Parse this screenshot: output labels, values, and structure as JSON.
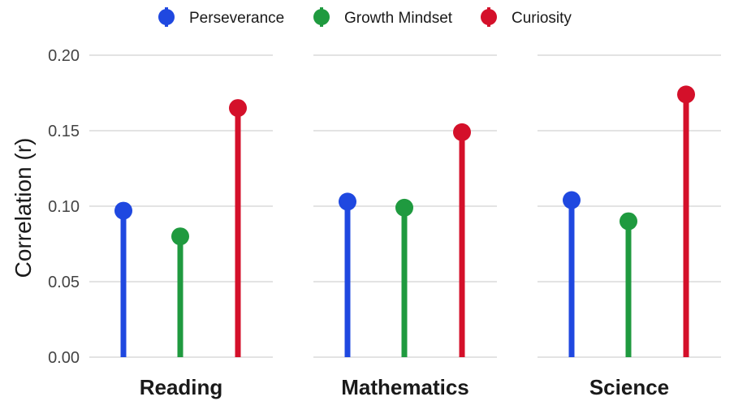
{
  "chart_data": {
    "type": "lollipop",
    "ylabel": "Correlation (r)",
    "ylim": [
      0,
      0.2
    ],
    "yticks": [
      0.0,
      0.05,
      0.1,
      0.15,
      0.2
    ],
    "ytick_labels": [
      "0.00",
      "0.05",
      "0.10",
      "0.15",
      "0.20"
    ],
    "grid": "horizontal",
    "legend_position": "top",
    "facets": [
      "Reading",
      "Mathematics",
      "Science"
    ],
    "series": [
      {
        "name": "Perseverance",
        "color": "#1f48e0",
        "values": [
          0.097,
          0.103,
          0.104
        ]
      },
      {
        "name": "Growth Mindset",
        "color": "#1f9a3f",
        "values": [
          0.08,
          0.099,
          0.09
        ]
      },
      {
        "name": "Curiosity",
        "color": "#d4102a",
        "values": [
          0.165,
          0.149,
          0.174
        ]
      }
    ]
  }
}
